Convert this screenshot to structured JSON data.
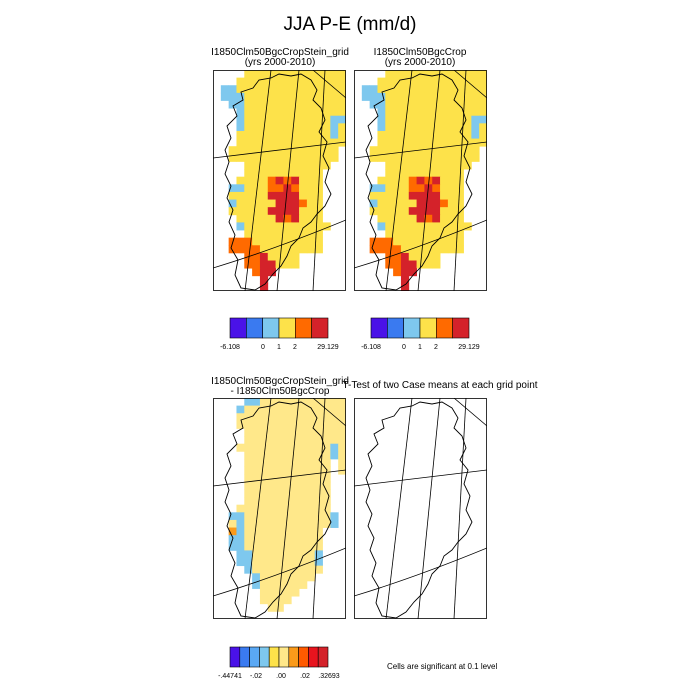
{
  "title": "JJA P-E (mm/d)",
  "panels": [
    {
      "id": "case1",
      "title": "I1850Clm50BgcCropStein_grid",
      "subtitle": "(yrs 2000-2010)"
    },
    {
      "id": "case2",
      "title": "I1850Clm50BgcCrop",
      "subtitle": "(yrs 2000-2010)"
    },
    {
      "id": "diff",
      "title": "I1850Clm50BgcCropStein_grid",
      "subtitle": "- I1850Clm50BgcCrop"
    },
    {
      "id": "ttest",
      "title": "T-Test of two Case means at each grid point",
      "subtitle": ""
    }
  ],
  "colorbars": {
    "main": {
      "colors": [
        "#4a12e8",
        "#3a7af0",
        "#7ec8ee",
        "#fde24a",
        "#ff6a00",
        "#d4222a"
      ],
      "labels": [
        "-6.108",
        "0",
        "1",
        "2",
        "29.129"
      ]
    },
    "diff": {
      "colors": [
        "#4a12e8",
        "#3a7af0",
        "#5aa8f4",
        "#7ec8ee",
        "#fde24a",
        "#ffe88a",
        "#fa9a1a",
        "#ff5a00",
        "#e8141e",
        "#d4222a"
      ],
      "labels": [
        "-.44741",
        "-.02",
        ".00",
        ".02",
        ".32693"
      ]
    }
  },
  "significance_note": "Cells are significant at 0.1 level",
  "chart_data": {
    "type": "heatmap",
    "title": "JJA P-E (mm/d)",
    "units": "mm/d",
    "region": "Greenland",
    "season": "JJA",
    "panels": [
      {
        "name": "I1850Clm50BgcCropStein_grid",
        "period": "2000-2010",
        "value_range": [
          -6.108,
          29.129
        ],
        "levels": [
          -6.108,
          0,
          1,
          2,
          29.129
        ]
      },
      {
        "name": "I1850Clm50BgcCrop",
        "period": "2000-2010",
        "value_range": [
          -6.108,
          29.129
        ],
        "levels": [
          -6.108,
          0,
          1,
          2,
          29.129
        ]
      },
      {
        "name": "I1850Clm50BgcCropStein_grid - I1850Clm50BgcCrop",
        "value_range": [
          -0.44741,
          0.32693
        ],
        "levels": [
          -0.44741,
          -0.02,
          0.0,
          0.02,
          0.32693
        ]
      },
      {
        "name": "T-Test of two Case means at each grid point",
        "significance_level": 0.1,
        "significant_cells": 0
      }
    ],
    "category_grid_main": [
      "00002222222222222",
      "00022222222222222",
      "01322222222222222",
      "01332222222222222",
      "00332222222222222",
      "00032222222222222",
      "00032222222222233",
      "00032222222222232",
      "00022222222222232",
      "00022222222222222",
      "00222222222222220",
      "00222222222222220",
      "00002222222222200",
      "00002222222222000",
      "00022224545222000",
      "00332224454222000",
      "00222225555222000",
      "00322222555422000",
      "00222225555222000",
      "00022222545222000",
      "00032222222222200",
      "00002222222222000",
      "00444222222222000",
      "00444422222222000",
      "00004452222000000",
      "00004455222000000",
      "00000455000000000",
      "00000050000000000",
      "00000050000000000"
    ],
    "category_grid_diff": [
      "00001122222222222",
      "00012222222222222",
      "00022222222222222",
      "00022222222222222",
      "00002222222222222",
      "00002222222222222",
      "00022222222222212",
      "00002222222222212",
      "00002222222222202",
      "00002222222222202",
      "00002222222222200",
      "00002222222222200",
      "00002222222222200",
      "00002222222222200",
      "00022222222222200",
      "00112222222222210",
      "00212222222222210",
      "00312222222222000",
      "00112222222222000",
      "00112222222222000",
      "00011222222221000",
      "00011222222221000",
      "00001222222222000",
      "00000122222220000",
      "00000122222200000",
      "00000022222000000",
      "00000022220000000",
      "00000002200000000",
      "00000000000000000"
    ]
  }
}
